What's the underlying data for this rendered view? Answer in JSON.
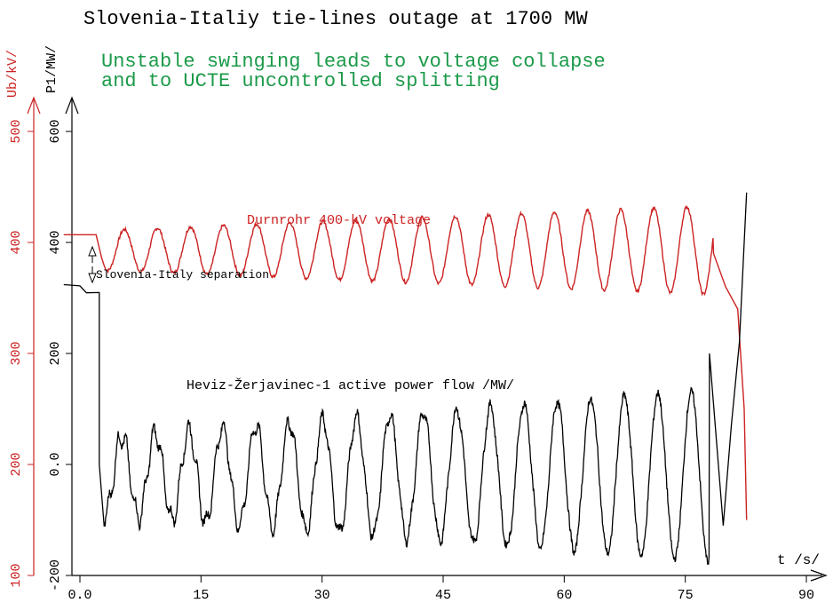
{
  "chart_data": {
    "type": "line",
    "title": "Slovenia-Italiy tie-lines outage at 1700 MW",
    "subtitle_lines": [
      "Unstable swinging leads to voltage collapse",
      "and to UCTE uncontrolled splitting"
    ],
    "xlabel": "t /s/",
    "xlim": [
      0,
      90
    ],
    "x_ticks": [
      0,
      15,
      30,
      45,
      60,
      75,
      90
    ],
    "x_tick_labels": [
      "0.0",
      "15",
      "30",
      "45",
      "60",
      "75",
      "90"
    ],
    "y_left_label": "Ub/kV/",
    "y_left_lim": [
      100,
      500
    ],
    "y_left_ticks": [
      100,
      200,
      300,
      400,
      500
    ],
    "y_left_tick_labels": [
      "100",
      "200",
      "300",
      "400",
      "500"
    ],
    "y_right_label": "P1/MW/",
    "y_right_lim": [
      -200,
      600
    ],
    "y_right_ticks": [
      -200,
      0,
      200,
      400,
      600
    ],
    "y_right_tick_labels": [
      "-200",
      "0.0",
      "200",
      "400",
      "600"
    ],
    "grid": false,
    "annotations": {
      "separation": "Slovenia-Italy separation",
      "voltage_label": "Durnrohr 400-kV voltage",
      "power_label": "Heviz-Žerjavinec-1 active power flow /MW/"
    },
    "series": [
      {
        "name": "Durnrohr 400-kV voltage",
        "axis": "left",
        "color": "#cc2222",
        "pre_event": {
          "t": [
            0,
            2
          ],
          "v": 407
        },
        "dip_at": {
          "t": 2.7,
          "v": 386
        },
        "oscillation": {
          "t_start": 3,
          "t_end": 78.5,
          "period": 4.1,
          "center": 393,
          "amp_start": 18,
          "amp_end": 40
        },
        "collapse": {
          "t": [
            78.5,
            80,
            81.5,
            82.3,
            82.6
          ],
          "v": [
            390,
            360,
            340,
            250,
            150
          ]
        }
      },
      {
        "name": "Heviz-Žerjavinec-1 active power flow /MW/",
        "axis": "right",
        "color": "#000000",
        "pre_event": {
          "t": [
            0,
            0.8,
            2.4
          ],
          "p": [
            324,
            310,
            308
          ]
        },
        "drop_at": {
          "t": 2.4,
          "p": 0
        },
        "oscillation": {
          "t_start": 3,
          "t_end": 78,
          "period": 4.15,
          "center": -20,
          "amp_start": 70,
          "amp_end": 155
        },
        "loss_of_sync": {
          "t": [
            78,
            79.7,
            80.7,
            81.7,
            82.6
          ],
          "p": [
            200,
            -110,
            70,
            220,
            490
          ]
        }
      }
    ]
  }
}
